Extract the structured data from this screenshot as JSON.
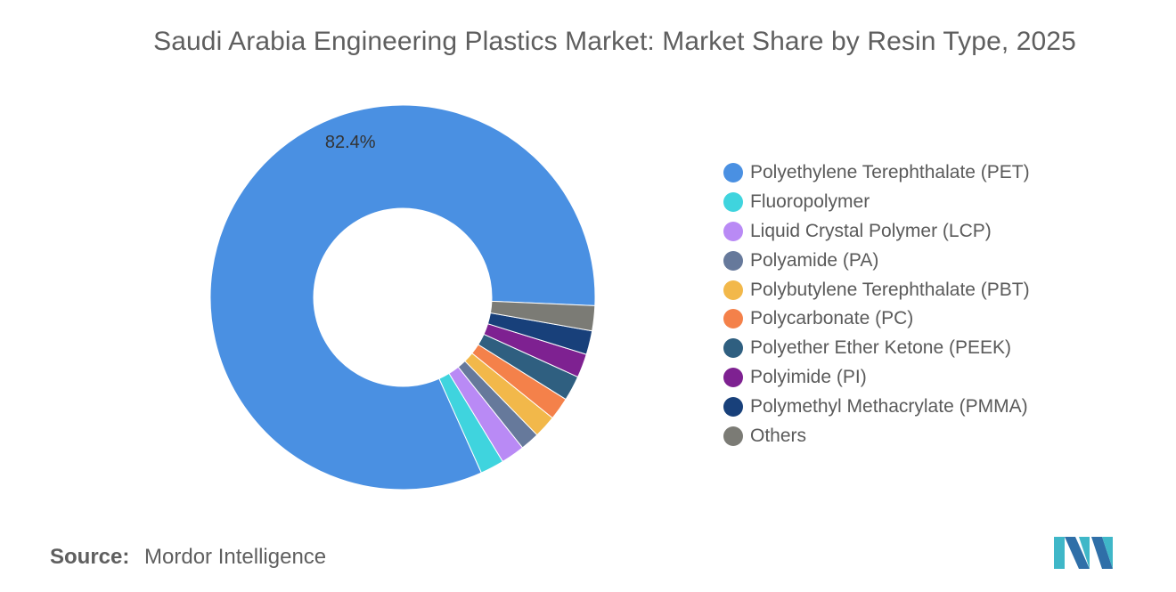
{
  "chart_data": {
    "type": "pie",
    "title": "Saudi Arabia Engineering Plastics Market: Market Share by Resin Type, 2025",
    "donut": true,
    "legend_position": "right",
    "slices": [
      {
        "label": "Polyethylene Terephthalate (PET)",
        "value": 82.4,
        "color": "#4a90e2",
        "data_label": "82.4%"
      },
      {
        "label": "Fluoropolymer",
        "value": 2.0,
        "color": "#3fd4de"
      },
      {
        "label": "Liquid Crystal Polymer (LCP)",
        "value": 2.0,
        "color": "#b98af5"
      },
      {
        "label": "Polyamide (PA)",
        "value": 1.6,
        "color": "#66799b"
      },
      {
        "label": "Polybutylene Terephthalate (PBT)",
        "value": 1.9,
        "color": "#f2b84a"
      },
      {
        "label": "Polycarbonate (PC)",
        "value": 1.9,
        "color": "#f4814a"
      },
      {
        "label": "Polyether Ether Ketone (PEEK)",
        "value": 2.1,
        "color": "#2f5f80"
      },
      {
        "label": "Polyimide (PI)",
        "value": 2.0,
        "color": "#7e2191"
      },
      {
        "label": "Polymethyl Methacrylate (PMMA)",
        "value": 2.0,
        "color": "#18407a"
      },
      {
        "label": "Others",
        "value": 2.1,
        "color": "#7b7b75"
      }
    ]
  },
  "source": {
    "label": "Source:",
    "text": "Mordor Intelligence"
  }
}
